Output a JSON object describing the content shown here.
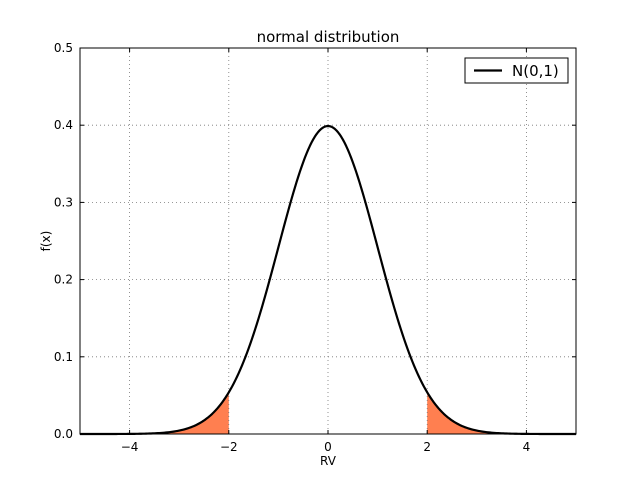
{
  "chart_data": {
    "type": "line",
    "title": "normal distribution",
    "xlabel": "RV",
    "ylabel": "f(x)",
    "xlim": [
      -5,
      5
    ],
    "ylim": [
      0,
      0.5
    ],
    "grid": true,
    "xticks": [
      -4,
      -2,
      0,
      2,
      4
    ],
    "xtick_labels": [
      "−4",
      "−2",
      "0",
      "2",
      "4"
    ],
    "yticks": [
      0.0,
      0.1,
      0.2,
      0.3,
      0.4,
      0.5
    ],
    "ytick_labels": [
      "0.0",
      "0.1",
      "0.2",
      "0.3",
      "0.4",
      "0.5"
    ],
    "series": [
      {
        "name": "N(0,1)",
        "distribution": "normal",
        "mean": 0,
        "std": 1,
        "x_range": [
          -5,
          5
        ],
        "color": "#000000"
      }
    ],
    "shaded_regions": [
      {
        "x_range": [
          -5,
          -2
        ],
        "color": "#FF7F50"
      },
      {
        "x_range": [
          2,
          5
        ],
        "color": "#FF7F50"
      }
    ],
    "legend": {
      "entries": [
        "N(0,1)"
      ],
      "location": "top-right"
    }
  }
}
